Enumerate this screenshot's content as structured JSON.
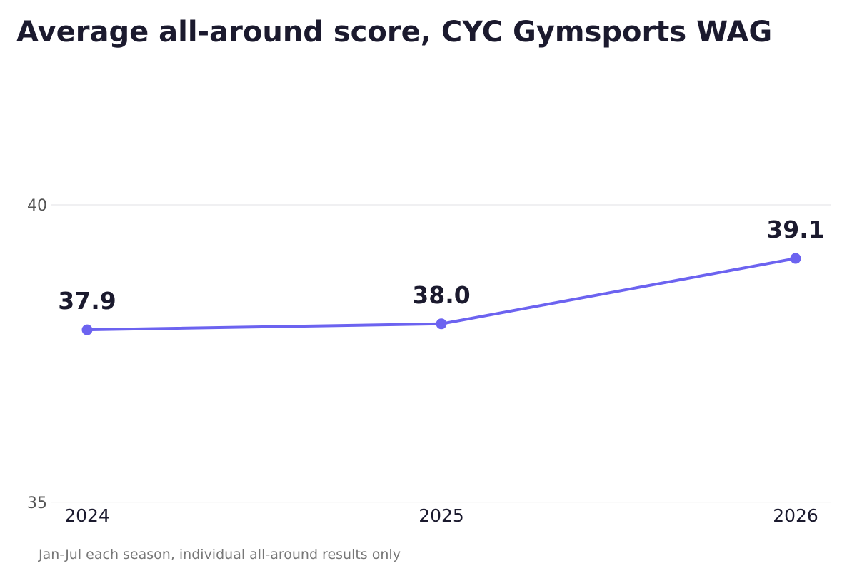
{
  "chart_data": {
    "type": "line",
    "title": "Average all-around score, CYC Gymsports WAG",
    "note": "Jan-Jul each season, individual all-around results only",
    "xlabel": "",
    "ylabel": "",
    "categories": [
      "2024",
      "2025",
      "2026"
    ],
    "series": [
      {
        "values": [
          37.9,
          38.0,
          39.1
        ],
        "labels": [
          "37.9",
          "38.0",
          "39.1"
        ],
        "color": "#6c63f0"
      }
    ],
    "ylim": [
      35,
      40
    ],
    "yticks": [
      35,
      40
    ],
    "ytick_labels": [
      "35",
      "40"
    ],
    "grid": true,
    "legend": "none"
  }
}
